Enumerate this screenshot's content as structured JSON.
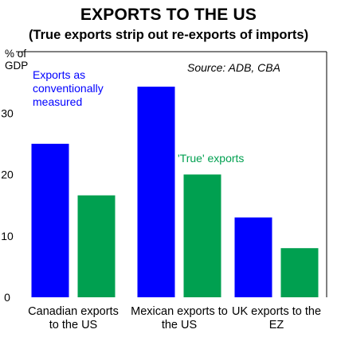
{
  "chart_data": {
    "type": "bar",
    "title": "EXPORTS TO THE US",
    "subtitle": "(True exports strip out re-exports of imports)",
    "ylabel": "% of GDP",
    "source": "Source: ADB, CBA",
    "categories": [
      "Canadian exports to the US",
      "Mexican exports to the US",
      "UK exports to the EZ"
    ],
    "series": [
      {
        "name": "Exports as conventionally measured",
        "color": "#0000ff",
        "values": [
          25,
          34.3,
          13
        ]
      },
      {
        "name": "'True' exports",
        "color": "#00a050",
        "values": [
          16.6,
          20,
          8
        ]
      }
    ],
    "ylim": [
      0,
      40
    ],
    "yticks": [
      0,
      10,
      20,
      30
    ],
    "grid": false
  },
  "xtick_lines": [
    [
      "Canadian exports",
      "to the US"
    ],
    [
      "Mexican exports to",
      "the US"
    ],
    [
      "UK exports to the",
      "EZ"
    ]
  ],
  "annotations": {
    "blue_lines": [
      "Exports as",
      "conventionally",
      "measured"
    ],
    "green": "'True' exports"
  },
  "unit_lines": [
    "% of",
    "GDP"
  ]
}
